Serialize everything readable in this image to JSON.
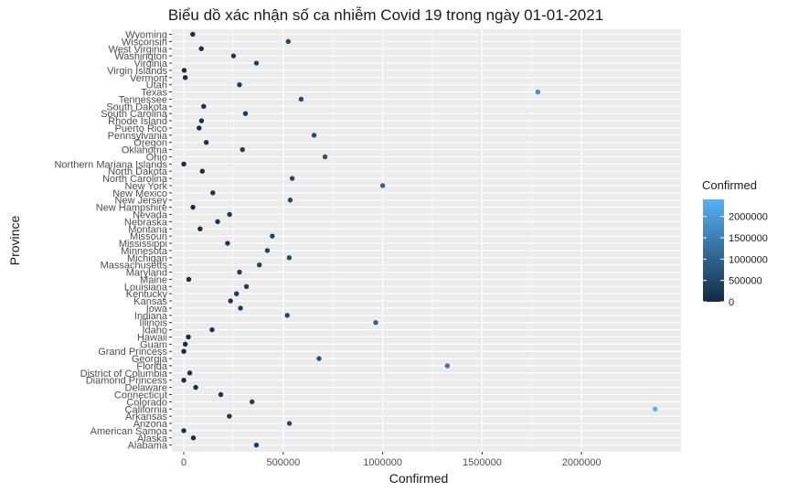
{
  "chart_data": {
    "type": "scatter",
    "title": "Biểu dồ xác nhận số ca nhiễm Covid 19 trong ngày 01-01-2021",
    "xlabel": "Confirmed",
    "ylabel": "Province",
    "xlim": [
      -60000,
      2500000
    ],
    "x_ticks": [
      0,
      500000,
      1000000,
      1500000,
      2000000
    ],
    "x_tick_labels": [
      "0",
      "500000",
      "1000000",
      "1500000",
      "2000000"
    ],
    "grid": true,
    "legend": {
      "title": "Confirmed",
      "position": "right",
      "range": [
        0,
        2400000
      ],
      "ticks": [
        0,
        500000,
        1000000,
        1500000,
        2000000
      ],
      "tick_labels": [
        "0",
        "500000",
        "1000000",
        "1500000",
        "2000000"
      ],
      "color_low": "#132B43",
      "color_high": "#56B1F7"
    },
    "points": [
      {
        "province": "Alabama",
        "confirmed": 365000
      },
      {
        "province": "Alaska",
        "confirmed": 48000
      },
      {
        "province": "American Samoa",
        "confirmed": 0
      },
      {
        "province": "Arizona",
        "confirmed": 531000
      },
      {
        "province": "Arkansas",
        "confirmed": 229000
      },
      {
        "province": "California",
        "confirmed": 2370000
      },
      {
        "province": "Colorado",
        "confirmed": 343000
      },
      {
        "province": "Connecticut",
        "confirmed": 186000
      },
      {
        "province": "Delaware",
        "confirmed": 60000
      },
      {
        "province": "Diamond Princess",
        "confirmed": 49
      },
      {
        "province": "District of Columbia",
        "confirmed": 30000
      },
      {
        "province": "Florida",
        "confirmed": 1325000
      },
      {
        "province": "Georgia",
        "confirmed": 680000
      },
      {
        "province": "Grand Princess",
        "confirmed": 103
      },
      {
        "province": "Guam",
        "confirmed": 7500
      },
      {
        "province": "Hawaii",
        "confirmed": 23000
      },
      {
        "province": "Idaho",
        "confirmed": 142000
      },
      {
        "province": "Illinois",
        "confirmed": 965000
      },
      {
        "province": "Indiana",
        "confirmed": 520000
      },
      {
        "province": "Iowa",
        "confirmed": 285000
      },
      {
        "province": "Kansas",
        "confirmed": 235000
      },
      {
        "province": "Kentucky",
        "confirmed": 265000
      },
      {
        "province": "Louisiana",
        "confirmed": 315000
      },
      {
        "province": "Maine",
        "confirmed": 25000
      },
      {
        "province": "Maryland",
        "confirmed": 280000
      },
      {
        "province": "Massachusetts",
        "confirmed": 380000
      },
      {
        "province": "Michigan",
        "confirmed": 530000
      },
      {
        "province": "Minnesota",
        "confirmed": 420000
      },
      {
        "province": "Mississippi",
        "confirmed": 220000
      },
      {
        "province": "Missouri",
        "confirmed": 445000
      },
      {
        "province": "Montana",
        "confirmed": 82000
      },
      {
        "province": "Nebraska",
        "confirmed": 170000
      },
      {
        "province": "Nevada",
        "confirmed": 230000
      },
      {
        "province": "New Hampshire",
        "confirmed": 46000
      },
      {
        "province": "New Jersey",
        "confirmed": 535000
      },
      {
        "province": "New Mexico",
        "confirmed": 146000
      },
      {
        "province": "New York",
        "confirmed": 1000000
      },
      {
        "province": "North Carolina",
        "confirmed": 545000
      },
      {
        "province": "North Dakota",
        "confirmed": 93000
      },
      {
        "province": "Northern Mariana Islands",
        "confirmed": 120
      },
      {
        "province": "Ohio",
        "confirmed": 710000
      },
      {
        "province": "Oklahoma",
        "confirmed": 295000
      },
      {
        "province": "Oregon",
        "confirmed": 113000
      },
      {
        "province": "Pennsylvania",
        "confirmed": 655000
      },
      {
        "province": "Puerto Rico",
        "confirmed": 77000
      },
      {
        "province": "Rhode Island",
        "confirmed": 89000
      },
      {
        "province": "South Carolina",
        "confirmed": 310000
      },
      {
        "province": "South Dakota",
        "confirmed": 100000
      },
      {
        "province": "Tennessee",
        "confirmed": 590000
      },
      {
        "province": "Texas",
        "confirmed": 1780000
      },
      {
        "province": "Utah",
        "confirmed": 280000
      },
      {
        "province": "Vermont",
        "confirmed": 7400
      },
      {
        "province": "Virgin Islands",
        "confirmed": 2000
      },
      {
        "province": "Virginia",
        "confirmed": 365000
      },
      {
        "province": "Washington",
        "confirmed": 250000
      },
      {
        "province": "West Virginia",
        "confirmed": 88000
      },
      {
        "province": "Wisconsin",
        "confirmed": 525000
      },
      {
        "province": "Wyoming",
        "confirmed": 45000
      }
    ]
  }
}
